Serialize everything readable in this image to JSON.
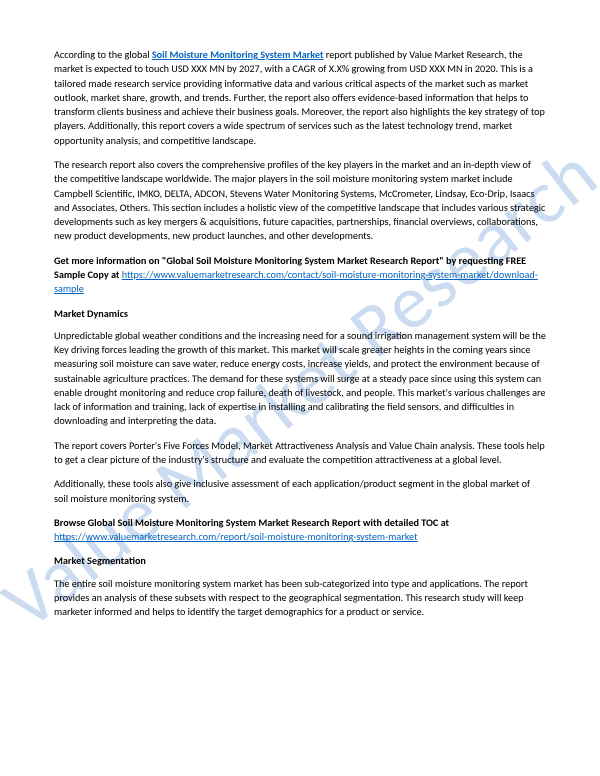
{
  "watermark": "Value Market Research",
  "para1_pre": "According to the global ",
  "para1_link": "Soil Moisture Monitoring System Market",
  "para1_post": " report published by Value Market Research, the market is expected to touch USD XXX MN by 2027, with a CAGR of X.X% growing from USD XXX MN in 2020. This is a tailored made research service providing informative data and various critical aspects of the market such as market outlook, market share, growth, and trends. Further, the report also offers evidence-based information that helps to transform clients business and achieve their business goals. Moreover, the report also highlights the key strategy of top players. Additionally, this report covers a wide spectrum of services such as the latest technology trend, market opportunity analysis, and competitive landscape.",
  "para2": "The research report also covers the comprehensive profiles of the key players in the market and an in-depth view of the competitive landscape worldwide. The major players in the soil moisture monitoring system market include Campbell Scientific, IMKO, DELTA, ADCON, Stevens Water Monitoring Systems, McCrometer, Lindsay, Eco-Drip, Isaacs and Associates, Others. This section includes a holistic view of the competitive landscape that includes various strategic developments such as key mergers & acquisitions, future capacities, partnerships, financial overviews, collaborations, new product developments, new product launches, and other developments.",
  "para3_bold": "Get more information on \"Global Soil Moisture Monitoring System Market Research Report\" by requesting FREE Sample Copy at ",
  "para3_link": "https://www.valuemarketresearch.com/contact/soil-moisture-monitoring-system-market/download-sample",
  "heading1": "Market Dynamics",
  "para4": "Unpredictable global weather conditions and the increasing need for a sound irrigation management system will be the Key driving forces leading the growth of this market. This market will scale greater heights in the coming years since measuring soil moisture can save water, reduce energy costs, increase yields, and protect the environment because of sustainable agriculture practices. The demand for these systems will surge at a steady pace since using this system can enable drought monitoring and reduce crop failure, death of livestock, and people. This market's various challenges are lack of information and training, lack of expertise in installing and calibrating the field sensors, and difficulties in downloading and interpreting the data.",
  "para5": "The report covers Porter's Five Forces Model, Market Attractiveness Analysis and Value Chain analysis. These tools help to get a clear picture of the industry's structure and evaluate the competition attractiveness at a global level.",
  "para6": "Additionally, these tools also give inclusive assessment of each application/product segment in the global market of soil moisture monitoring system.",
  "para7_bold": "Browse Global Soil Moisture Monitoring System Market Research Report with detailed TOC at ",
  "para7_link": "https://www.valuemarketresearch.com/report/soil-moisture-monitoring-system-market",
  "heading2": "Market Segmentation",
  "para8": "The entire soil moisture monitoring system market has been sub-categorized into type and applications. The report provides an analysis of these subsets with respect to the geographical segmentation. This research study will keep marketer informed and helps to identify the target demographics for a product or service."
}
